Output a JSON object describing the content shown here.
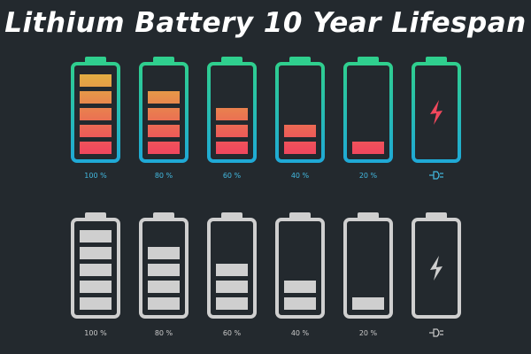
{
  "title": "Lithium Battery 10 Year Lifespan",
  "colors": {
    "background": "#23292e",
    "frame_top": "#2fcf8e",
    "frame_bottom": "#1fa9d6",
    "fill_top": "#e2b341",
    "fill_bottom": "#f0485d",
    "gray": "#cfcfcf",
    "label_color_row": "#42b9e0",
    "label_gray_row": "#c9c9c9"
  },
  "rows": [
    {
      "style": "color",
      "batteries": [
        {
          "label": "100 %",
          "segments": 5
        },
        {
          "label": "80 %",
          "segments": 4
        },
        {
          "label": "60 %",
          "segments": 3
        },
        {
          "label": "40 %",
          "segments": 2
        },
        {
          "label": "20 %",
          "segments": 1
        },
        {
          "label": "",
          "segments": 0,
          "icon": "lightning-bolt-icon",
          "label_icon": "plug-icon"
        }
      ]
    },
    {
      "style": "gray",
      "batteries": [
        {
          "label": "100 %",
          "segments": 5
        },
        {
          "label": "80 %",
          "segments": 4
        },
        {
          "label": "60 %",
          "segments": 3
        },
        {
          "label": "40 %",
          "segments": 2
        },
        {
          "label": "20 %",
          "segments": 1
        },
        {
          "label": "",
          "segments": 0,
          "icon": "lightning-bolt-icon",
          "label_icon": "plug-icon"
        }
      ]
    }
  ]
}
